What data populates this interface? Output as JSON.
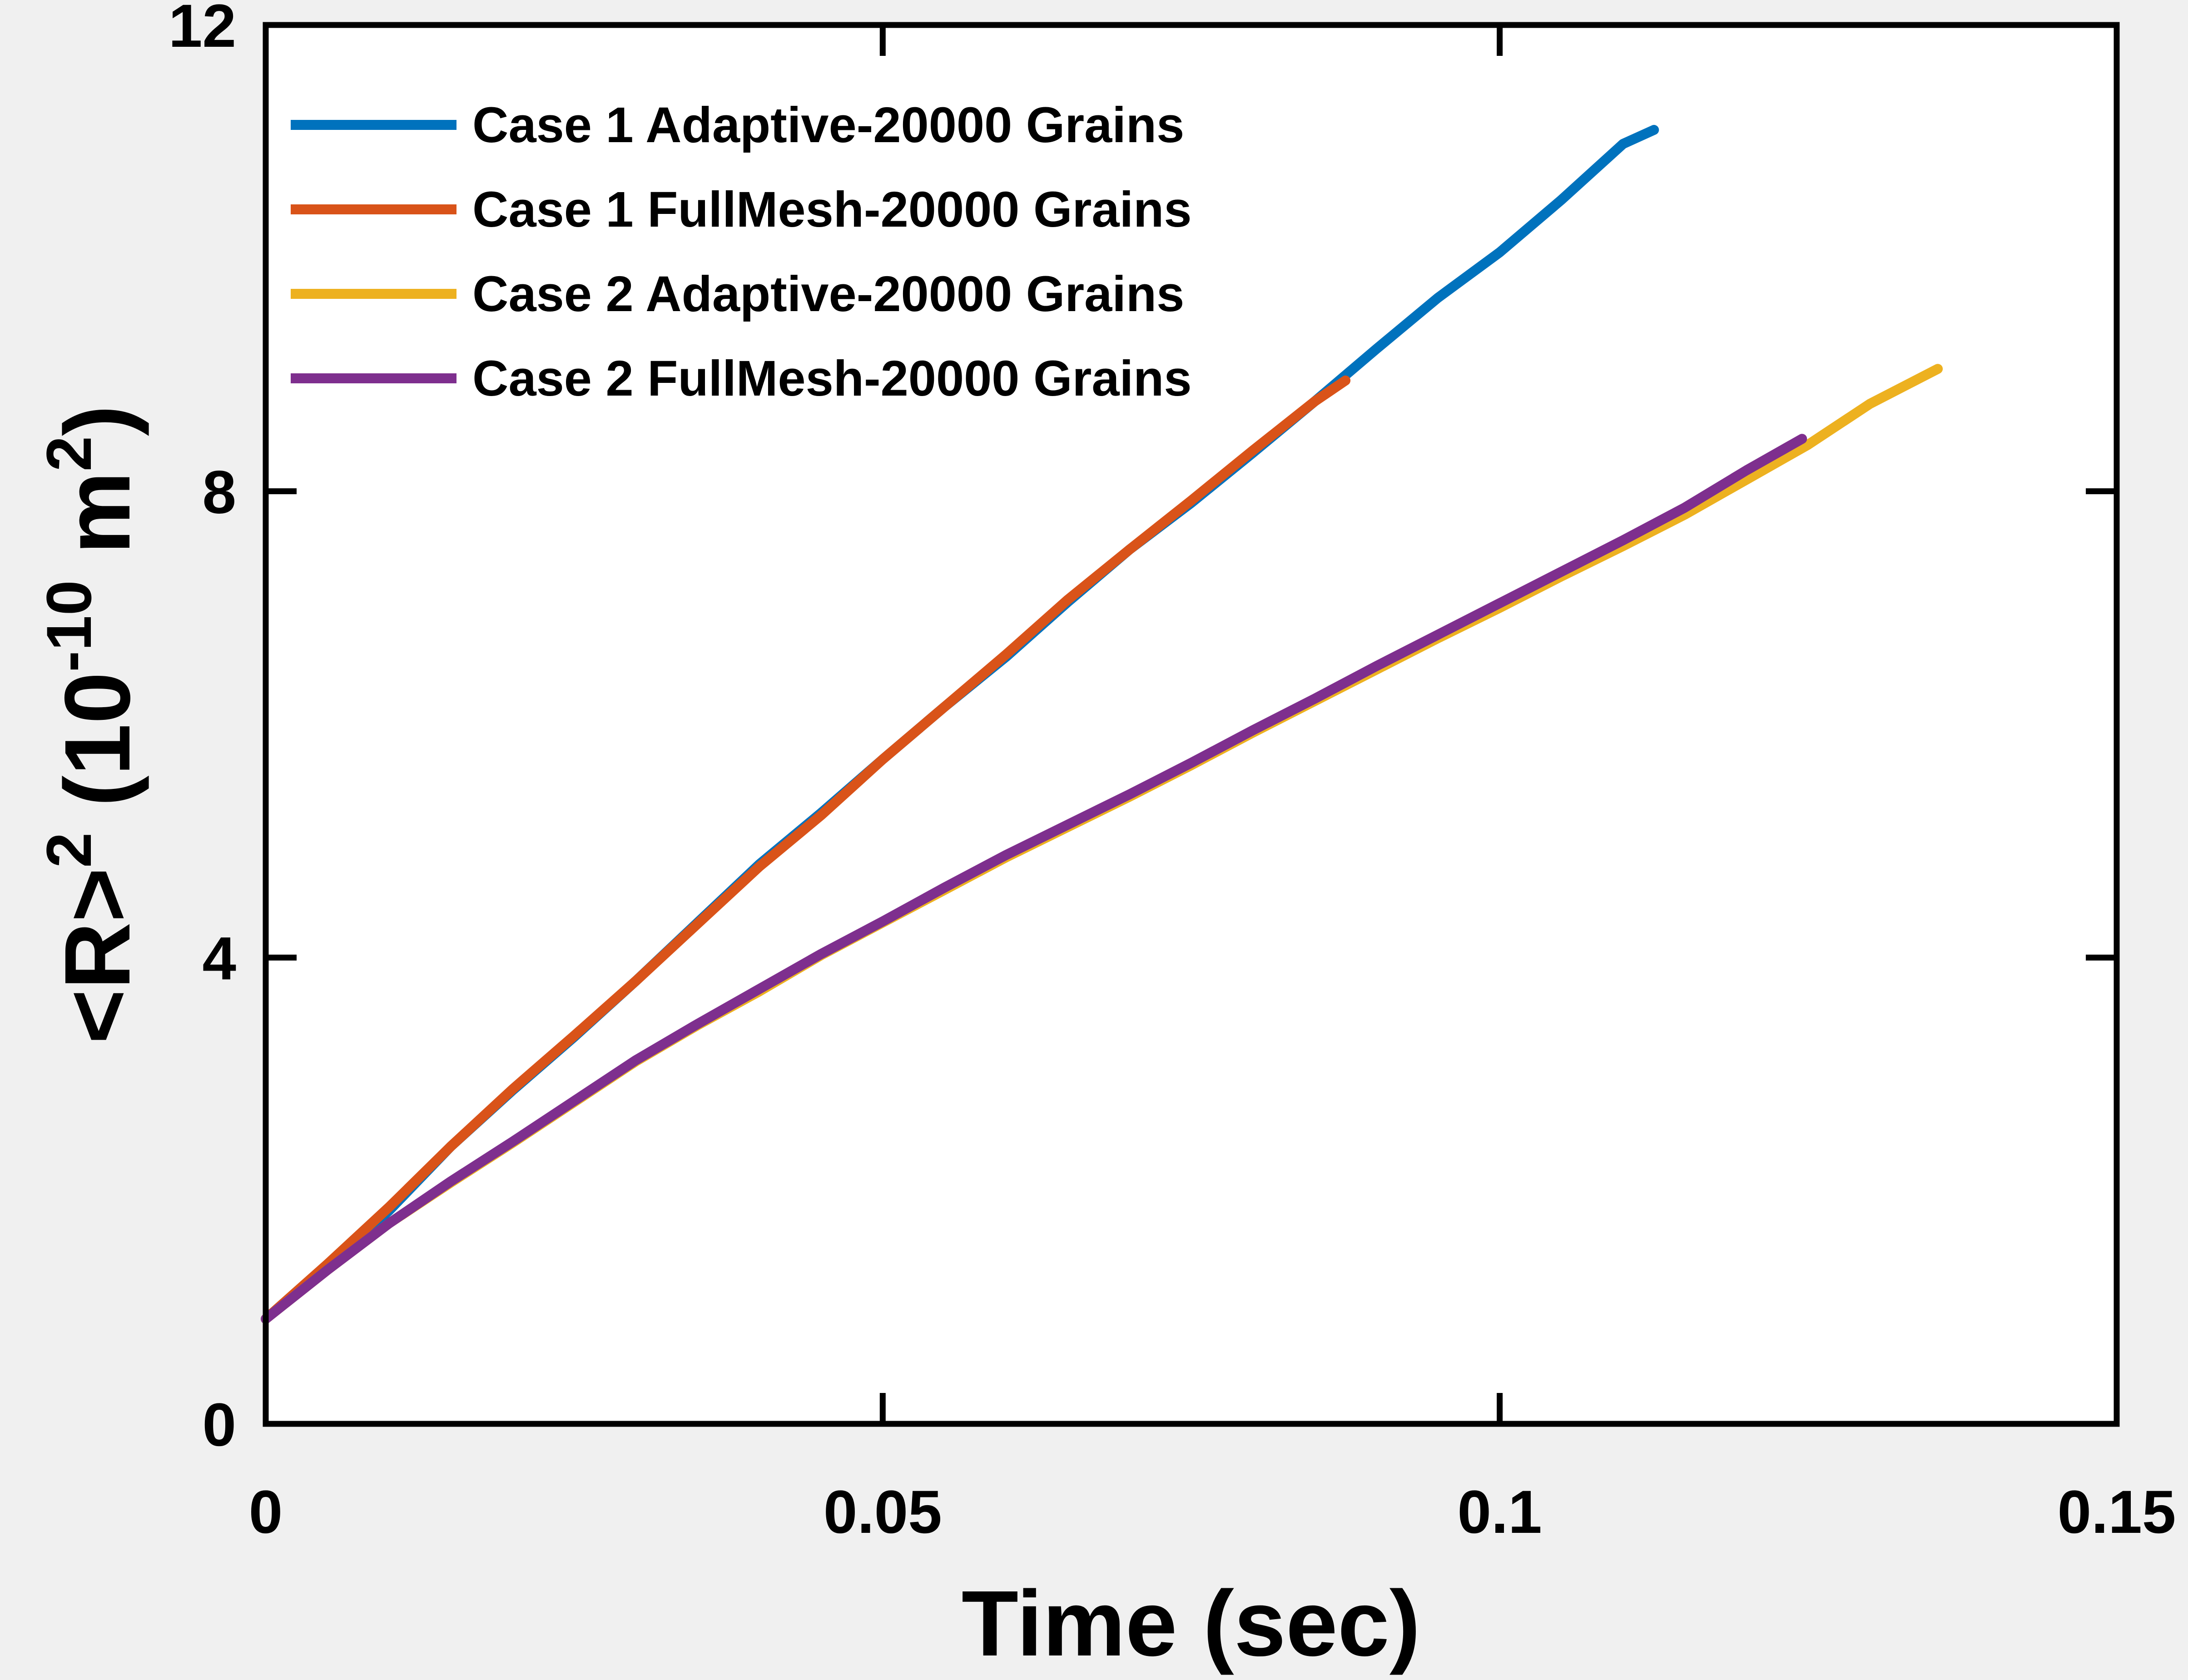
{
  "chart_data": {
    "type": "line",
    "title": "",
    "xlabel": "Time (sec)",
    "ylabel": {
      "base": "<R>",
      "base_sup": "2",
      "paren_open": " (10",
      "exp": "-10",
      "unit": " m",
      "unit_sup": "2",
      "paren_close": ")"
    },
    "xlim": [
      0,
      0.15
    ],
    "ylim": [
      0,
      12
    ],
    "x_ticks": [
      0,
      0.05,
      0.1,
      0.15
    ],
    "x_tick_labels": [
      "0",
      "0.05",
      "0.1",
      "0.15"
    ],
    "y_ticks": [
      0,
      4,
      8,
      12
    ],
    "y_tick_labels": [
      "0",
      "4",
      "8",
      "12"
    ],
    "grid": false,
    "legend_position": "top-left",
    "series": [
      {
        "name": "Case 1 Adaptive-20000 Grains",
        "color": "#0072BD",
        "x": [
          0,
          0.005,
          0.01,
          0.015,
          0.02,
          0.025,
          0.03,
          0.035,
          0.04,
          0.045,
          0.05,
          0.055,
          0.06,
          0.065,
          0.07,
          0.075,
          0.08,
          0.085,
          0.09,
          0.095,
          0.1,
          0.105,
          0.11,
          0.1125
        ],
        "y": [
          0.9,
          1.35,
          1.83,
          2.38,
          2.86,
          3.32,
          3.8,
          4.3,
          4.8,
          5.24,
          5.7,
          6.15,
          6.58,
          7.05,
          7.5,
          7.9,
          8.33,
          8.77,
          9.22,
          9.66,
          10.05,
          10.5,
          10.98,
          11.1
        ]
      },
      {
        "name": "Case 1 FullMesh-20000 Grains",
        "color": "#D95319",
        "x": [
          0,
          0.005,
          0.01,
          0.015,
          0.02,
          0.025,
          0.03,
          0.035,
          0.04,
          0.045,
          0.05,
          0.055,
          0.06,
          0.065,
          0.07,
          0.075,
          0.08,
          0.085,
          0.0875
        ],
        "y": [
          0.9,
          1.37,
          1.86,
          2.38,
          2.87,
          3.33,
          3.8,
          4.29,
          4.78,
          5.22,
          5.7,
          6.15,
          6.6,
          7.07,
          7.5,
          7.92,
          8.35,
          8.77,
          8.95
        ]
      },
      {
        "name": "Case 2 Adaptive-20000 Grains",
        "color": "#EDB120",
        "x": [
          0,
          0.005,
          0.01,
          0.015,
          0.02,
          0.025,
          0.03,
          0.035,
          0.04,
          0.045,
          0.05,
          0.055,
          0.06,
          0.065,
          0.07,
          0.075,
          0.08,
          0.085,
          0.09,
          0.095,
          0.1,
          0.105,
          0.11,
          0.115,
          0.12,
          0.125,
          0.13,
          0.1355
        ],
        "y": [
          0.9,
          1.32,
          1.72,
          2.07,
          2.41,
          2.76,
          3.11,
          3.42,
          3.71,
          4.02,
          4.3,
          4.58,
          4.86,
          5.12,
          5.38,
          5.65,
          5.93,
          6.2,
          6.47,
          6.74,
          7.0,
          7.27,
          7.53,
          7.8,
          8.1,
          8.4,
          8.75,
          9.05
        ]
      },
      {
        "name": "Case 2 FullMesh-20000 Grains",
        "color": "#7E2F8E",
        "x": [
          0,
          0.005,
          0.01,
          0.015,
          0.02,
          0.025,
          0.03,
          0.035,
          0.04,
          0.045,
          0.05,
          0.055,
          0.06,
          0.065,
          0.07,
          0.075,
          0.08,
          0.085,
          0.09,
          0.095,
          0.1,
          0.105,
          0.11,
          0.115,
          0.12,
          0.1245
        ],
        "y": [
          0.9,
          1.32,
          1.72,
          2.08,
          2.42,
          2.77,
          3.12,
          3.43,
          3.73,
          4.03,
          4.31,
          4.6,
          4.88,
          5.14,
          5.4,
          5.67,
          5.95,
          6.22,
          6.5,
          6.77,
          7.04,
          7.31,
          7.58,
          7.86,
          8.18,
          8.45
        ]
      }
    ]
  }
}
